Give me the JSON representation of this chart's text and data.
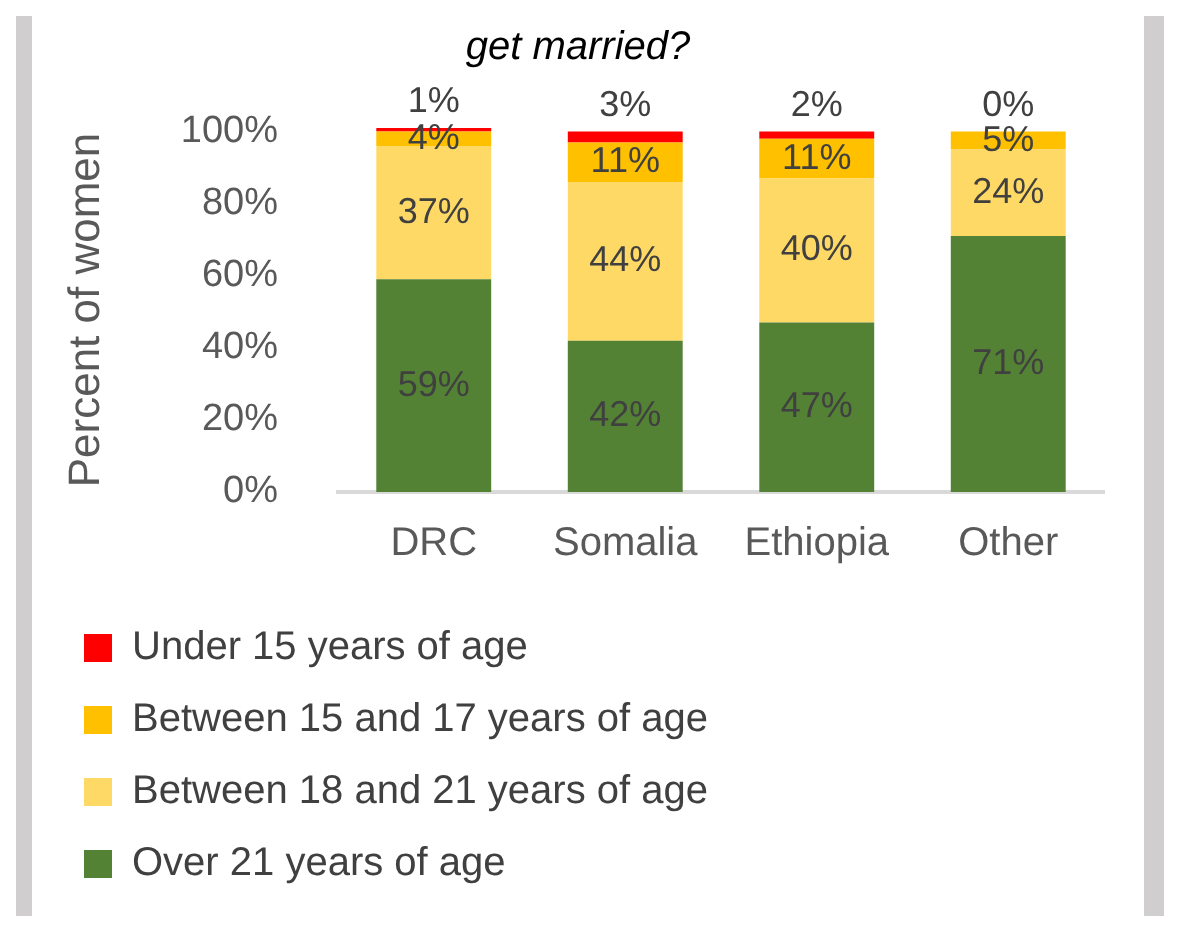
{
  "chart_data": {
    "type": "bar",
    "title": "get married?",
    "ylabel": "Percent of women",
    "categories": [
      "DRC",
      "Somalia",
      "Ethiopia",
      "Other"
    ],
    "stacked": true,
    "ylim": [
      0,
      101
    ],
    "yticks": [
      {
        "value": 0,
        "label": "0%"
      },
      {
        "value": 20,
        "label": "20%"
      },
      {
        "value": 40,
        "label": "40%"
      },
      {
        "value": 60,
        "label": "60%"
      },
      {
        "value": 80,
        "label": "80%"
      },
      {
        "value": 100,
        "label": "100%"
      }
    ],
    "grid": false,
    "legend": "bottom",
    "series": [
      {
        "name": "Over 21 years of age",
        "color": "#548235",
        "values": [
          59,
          42,
          47,
          71
        ],
        "value_labels": [
          "59%",
          "42%",
          "47%",
          "71%"
        ]
      },
      {
        "name": "Between 18 and 21 years of age",
        "color": "#ffd966",
        "values": [
          37,
          44,
          40,
          24
        ],
        "value_labels": [
          "37%",
          "44%",
          "40%",
          "24%"
        ]
      },
      {
        "name": "Between 15 and 17 years of age",
        "color": "#ffc000",
        "values": [
          4,
          11,
          11,
          5
        ],
        "value_labels": [
          "4%",
          "11%",
          "11%",
          "5%"
        ]
      },
      {
        "name": "Under 15 years of age",
        "color": "#ff0000",
        "values": [
          1,
          3,
          2,
          0
        ],
        "value_labels": [
          "1%",
          "3%",
          "2%",
          "0%"
        ]
      }
    ]
  }
}
